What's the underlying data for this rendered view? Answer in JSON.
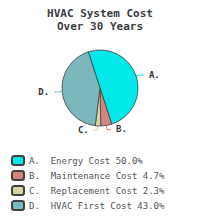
{
  "chart_data": {
    "type": "pie",
    "title": "HVAC System Cost\nOver 30 Years",
    "categories": [
      "A.",
      "B.",
      "C.",
      "D."
    ],
    "values": [
      50.0,
      4.7,
      2.3,
      43.0
    ],
    "colors": [
      "#00e8e8",
      "#d4847a",
      "#d8d4a0",
      "#7ab8bc"
    ],
    "annotations": [
      "A.  Energy Cost 50.0%",
      "B.  Maintenance Cost 4.7%",
      "C.  Replacement Cost 2.3%",
      "D.  HVAC First Cost 43.0%"
    ],
    "legend": "bottom"
  }
}
